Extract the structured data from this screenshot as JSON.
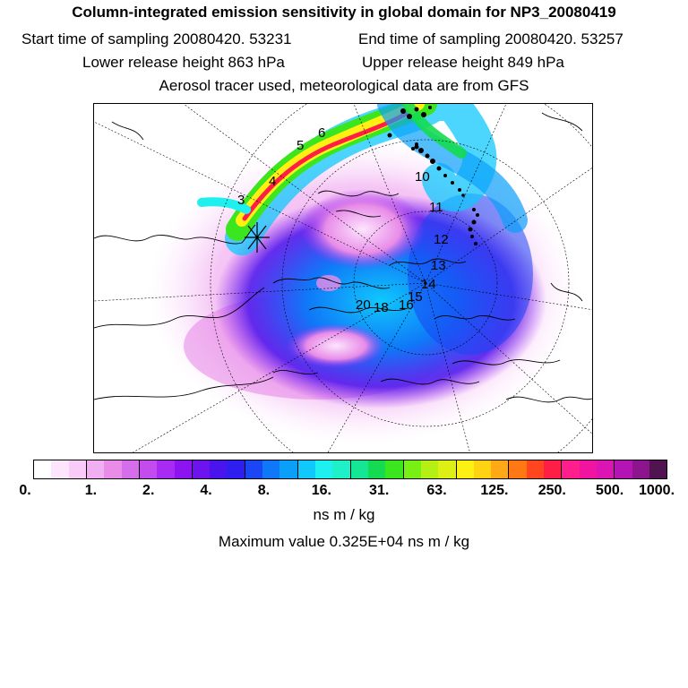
{
  "header": {
    "title": "Column-integrated emission sensitivity in global domain for NP3_20080419",
    "start_time": "Start time of sampling 20080420. 53231",
    "end_time": "End time of sampling 20080420. 53257",
    "lower_height": "Lower release height  863 hPa",
    "upper_height": "Upper release height  849 hPa",
    "tracer_note": "Aerosol tracer used, meteorological data are from GFS"
  },
  "map": {
    "day_labels": [
      "3",
      "4",
      "5",
      "6",
      "10",
      "11",
      "12",
      "13",
      "14",
      "15",
      "16",
      "18",
      "20"
    ]
  },
  "colorbar": {
    "colors": [
      "#ffffff",
      "#fde5fd",
      "#f8cbf8",
      "#f1aff1",
      "#e88ce8",
      "#d66dea",
      "#c44cee",
      "#a92af2",
      "#8c14f0",
      "#6d14ee",
      "#4a14ec",
      "#2e1ef0",
      "#1a46f4",
      "#0f78f8",
      "#0aa0fa",
      "#10c8fc",
      "#1ef0f0",
      "#1ef0c8",
      "#14e696",
      "#14dc50",
      "#3ce61e",
      "#78f014",
      "#b4f014",
      "#dcf014",
      "#fff014",
      "#ffd214",
      "#ffaa14",
      "#ff7814",
      "#ff461e",
      "#ff1e46",
      "#ff1e8c",
      "#f014a0",
      "#dc14b4",
      "#b414b4",
      "#8c148c",
      "#501450"
    ],
    "tick_labels": [
      "0.",
      "1.",
      "2.",
      "4.",
      "8.",
      "16.",
      "31.",
      "63.",
      "125.",
      "250.",
      "500.",
      "1000."
    ],
    "unit": "ns m / kg",
    "maximum": "Maximum value  0.325E+04 ns m / kg"
  }
}
